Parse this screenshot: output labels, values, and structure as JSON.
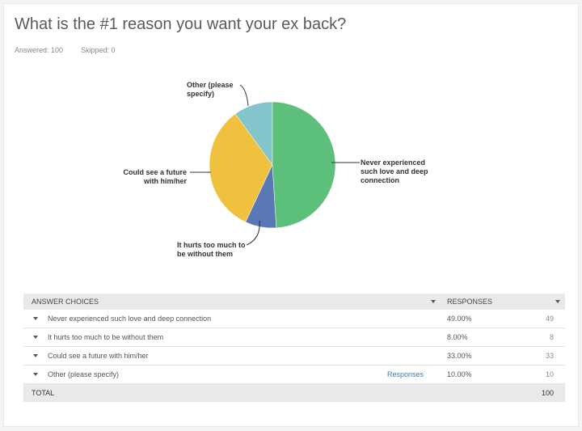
{
  "header": {
    "title": "What is the #1 reason you want your ex back?",
    "answered": "Answered: 100",
    "skipped": "Skipped: 0"
  },
  "chart_data": {
    "type": "pie",
    "categories": [
      "Never experienced such love and deep connection",
      "It hurts too much to be without them",
      "Could see a future with him/her",
      "Other (please specify)"
    ],
    "values": [
      49,
      8,
      33,
      10
    ],
    "colors": [
      "#5cbf7a",
      "#5b78b6",
      "#f0c13f",
      "#84c5cc"
    ]
  },
  "table": {
    "columns": [
      "ANSWER CHOICES",
      "RESPONSES"
    ],
    "rows": [
      {
        "choice": "Never experienced such love and deep connection",
        "percent": "49.00%",
        "count": 49
      },
      {
        "choice": "It hurts too much to be without them",
        "percent": "8.00%",
        "count": 8
      },
      {
        "choice": "Could see a future with him/her",
        "percent": "33.00%",
        "count": 33
      },
      {
        "choice": "Other (please specify)",
        "link": "Responses",
        "percent": "10.00%",
        "count": 10
      }
    ],
    "total": {
      "label": "TOTAL",
      "count": 100
    }
  }
}
